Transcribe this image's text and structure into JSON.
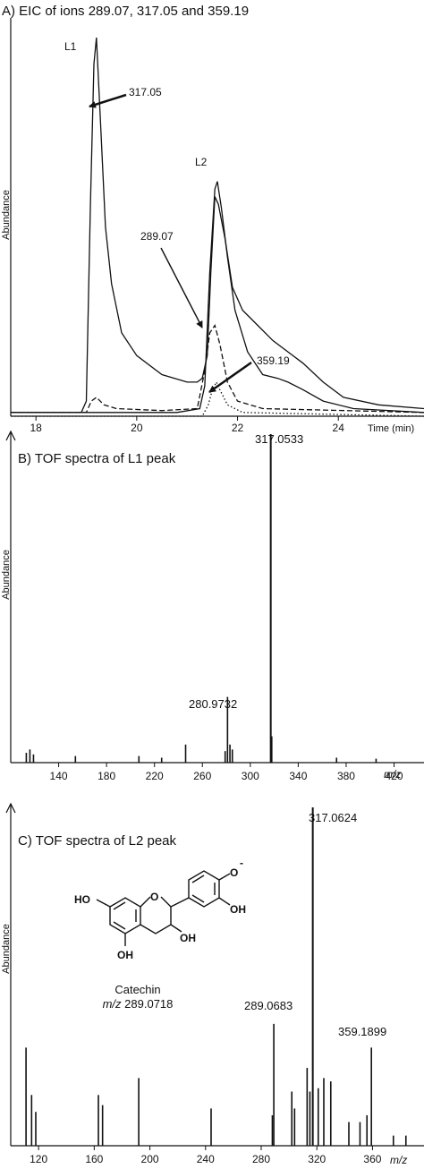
{
  "chart_data": [
    {
      "panel": "A",
      "type": "line",
      "title": "A) EIC of ions 289.07, 317.05 and 359.19",
      "xlabel": "Time (min)",
      "ylabel": "Abundance",
      "xlim": [
        17.5,
        25.7
      ],
      "ylim": [
        0,
        1
      ],
      "x_ticks": [
        18,
        20,
        22,
        24
      ],
      "grid": false,
      "series": [
        {
          "style": "solid",
          "points": [
            [
              17.5,
              0.01
            ],
            [
              18.9,
              0.01
            ],
            [
              19.0,
              0.04
            ],
            [
              19.08,
              0.55
            ],
            [
              19.15,
              0.93
            ],
            [
              19.2,
              1.0
            ],
            [
              19.28,
              0.78
            ],
            [
              19.38,
              0.5
            ],
            [
              19.5,
              0.35
            ],
            [
              19.7,
              0.22
            ],
            [
              20.0,
              0.16
            ],
            [
              20.5,
              0.11
            ],
            [
              21.0,
              0.09
            ],
            [
              21.2,
              0.09
            ],
            [
              21.3,
              0.1
            ],
            [
              21.4,
              0.16
            ],
            [
              21.47,
              0.38
            ],
            [
              21.55,
              0.58
            ],
            [
              21.62,
              0.56
            ],
            [
              21.75,
              0.47
            ],
            [
              21.9,
              0.34
            ],
            [
              22.1,
              0.28
            ],
            [
              22.4,
              0.24
            ],
            [
              22.7,
              0.2
            ],
            [
              23.0,
              0.17
            ],
            [
              23.3,
              0.14
            ],
            [
              23.7,
              0.09
            ],
            [
              24.1,
              0.05
            ],
            [
              24.8,
              0.03
            ],
            [
              25.7,
              0.02
            ]
          ]
        },
        {
          "style": "solid",
          "points": [
            [
              17.5,
              0.01
            ],
            [
              19.3,
              0.01
            ],
            [
              20.8,
              0.01
            ],
            [
              21.25,
              0.02
            ],
            [
              21.35,
              0.08
            ],
            [
              21.45,
              0.38
            ],
            [
              21.55,
              0.6
            ],
            [
              21.6,
              0.62
            ],
            [
              21.68,
              0.55
            ],
            [
              21.8,
              0.42
            ],
            [
              21.95,
              0.28
            ],
            [
              22.2,
              0.17
            ],
            [
              22.5,
              0.11
            ],
            [
              22.8,
              0.1
            ],
            [
              23.0,
              0.09
            ],
            [
              23.3,
              0.07
            ],
            [
              23.7,
              0.04
            ],
            [
              24.3,
              0.02
            ],
            [
              25.7,
              0.01
            ]
          ]
        },
        {
          "style": "dashed",
          "points": [
            [
              17.5,
              0.01
            ],
            [
              19.0,
              0.01
            ],
            [
              19.1,
              0.04
            ],
            [
              19.2,
              0.05
            ],
            [
              19.35,
              0.03
            ],
            [
              19.6,
              0.02
            ],
            [
              20.5,
              0.015
            ],
            [
              21.2,
              0.02
            ],
            [
              21.35,
              0.12
            ],
            [
              21.45,
              0.22
            ],
            [
              21.55,
              0.24
            ],
            [
              21.65,
              0.19
            ],
            [
              21.8,
              0.09
            ],
            [
              22.0,
              0.04
            ],
            [
              22.5,
              0.02
            ],
            [
              25.7,
              0.01
            ]
          ]
        },
        {
          "style": "dotted",
          "points": [
            [
              17.5,
              0.0
            ],
            [
              21.3,
              0.0
            ],
            [
              21.42,
              0.03
            ],
            [
              21.5,
              0.07
            ],
            [
              21.58,
              0.09
            ],
            [
              21.65,
              0.07
            ],
            [
              21.8,
              0.03
            ],
            [
              22.1,
              0.01
            ],
            [
              25.7,
              0.0
            ]
          ]
        }
      ],
      "annotations": [
        {
          "text": "L1",
          "x": 19.05,
          "y": 1.0
        },
        {
          "text": "L2",
          "x": 21.5,
          "y": 0.66
        },
        {
          "text": "317.05",
          "x": 19.5,
          "y": 0.86
        },
        {
          "text": "289.07",
          "x": 21.05,
          "y": 0.46
        },
        {
          "text": "359.19",
          "x": 22.7,
          "y": 0.14
        }
      ]
    },
    {
      "panel": "B",
      "type": "bar",
      "title": "B) TOF spectra of L1 peak",
      "xlabel": "m/z",
      "ylabel": "Abundance",
      "xlim": [
        100,
        445
      ],
      "ylim": [
        0,
        1
      ],
      "x_ticks": [
        140,
        180,
        220,
        260,
        300,
        340,
        380,
        420
      ],
      "peaks": [
        {
          "x": 317.0533,
          "y": 1.0,
          "label": "317.0533"
        },
        {
          "x": 280.9732,
          "y": 0.2,
          "label": "280.9732"
        },
        {
          "x": 317.9,
          "y": 0.08
        },
        {
          "x": 246,
          "y": 0.055
        },
        {
          "x": 283,
          "y": 0.055
        },
        {
          "x": 285,
          "y": 0.04
        },
        {
          "x": 279,
          "y": 0.035
        },
        {
          "x": 113,
          "y": 0.03
        },
        {
          "x": 116,
          "y": 0.04
        },
        {
          "x": 119,
          "y": 0.025
        },
        {
          "x": 154,
          "y": 0.02
        },
        {
          "x": 207,
          "y": 0.02
        },
        {
          "x": 226,
          "y": 0.015
        },
        {
          "x": 372,
          "y": 0.015
        },
        {
          "x": 405,
          "y": 0.012
        }
      ]
    },
    {
      "panel": "C",
      "type": "bar",
      "title": "C) TOF spectra of L2 peak",
      "xlabel": "m/z",
      "ylabel": "Abundance",
      "xlim": [
        100,
        397
      ],
      "ylim": [
        0,
        1
      ],
      "x_ticks": [
        120,
        160,
        200,
        240,
        280,
        320,
        360
      ],
      "peaks": [
        {
          "x": 317.0624,
          "y": 1.0,
          "label": "317.0624"
        },
        {
          "x": 289.0683,
          "y": 0.36,
          "label": "289.0683"
        },
        {
          "x": 359.1899,
          "y": 0.29,
          "label": "359.1899"
        },
        {
          "x": 111,
          "y": 0.29
        },
        {
          "x": 115,
          "y": 0.15
        },
        {
          "x": 118,
          "y": 0.1
        },
        {
          "x": 163,
          "y": 0.15
        },
        {
          "x": 166,
          "y": 0.12
        },
        {
          "x": 192,
          "y": 0.2
        },
        {
          "x": 244,
          "y": 0.11
        },
        {
          "x": 288,
          "y": 0.09
        },
        {
          "x": 302,
          "y": 0.16
        },
        {
          "x": 304,
          "y": 0.11
        },
        {
          "x": 313,
          "y": 0.23
        },
        {
          "x": 315,
          "y": 0.16
        },
        {
          "x": 321,
          "y": 0.17
        },
        {
          "x": 325,
          "y": 0.2
        },
        {
          "x": 330,
          "y": 0.19
        },
        {
          "x": 343,
          "y": 0.07
        },
        {
          "x": 351,
          "y": 0.07
        },
        {
          "x": 356,
          "y": 0.09
        },
        {
          "x": 375,
          "y": 0.03
        },
        {
          "x": 384,
          "y": 0.03
        }
      ],
      "inset": {
        "compound": "Catechin",
        "mz_prefix": "m/z",
        "mz_value": "289.0718",
        "atom_labels": {
          "ho1": "HO",
          "ho2": "OH",
          "ho3": "OH",
          "ho4": "OH",
          "ring_o": "O",
          "phenoxide": "O",
          "charge": "-"
        }
      }
    }
  ]
}
